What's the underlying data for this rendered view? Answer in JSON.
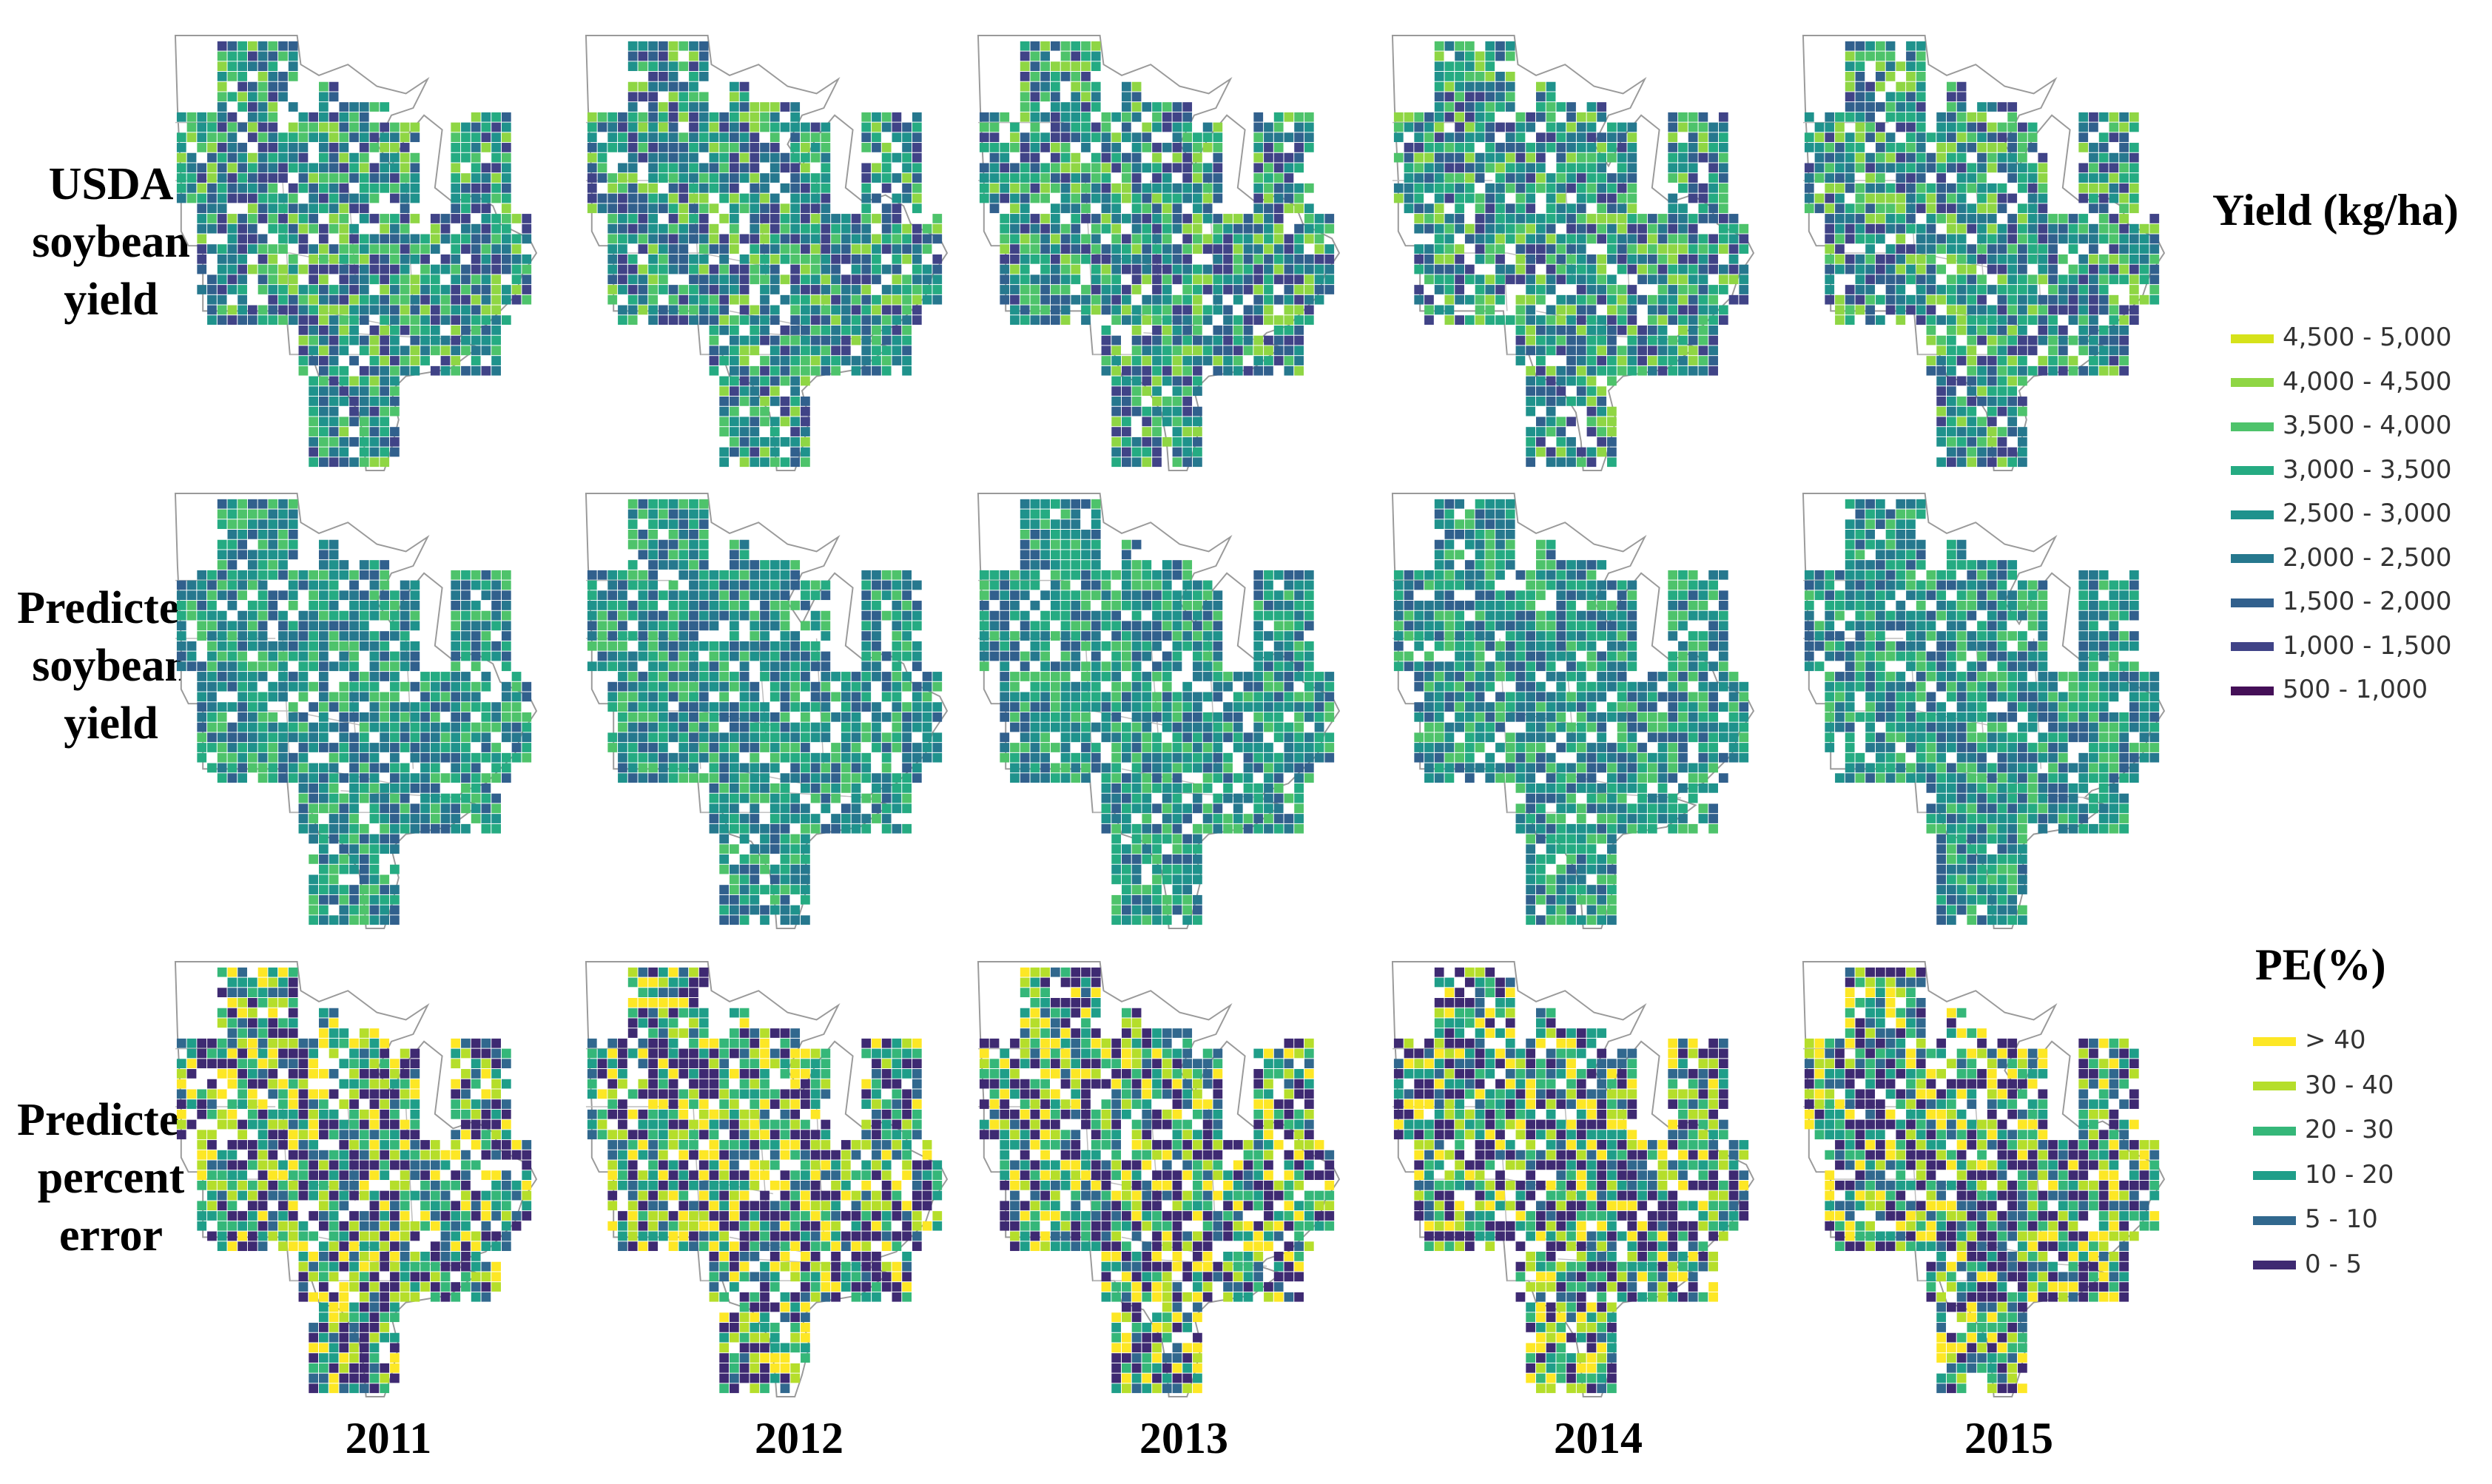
{
  "row_labels": [
    [
      "USDA",
      "soybean",
      "yield"
    ],
    [
      "Predicted",
      "soybean",
      "yield"
    ],
    [
      "Predicted",
      "percent",
      "error"
    ]
  ],
  "years": [
    "2011",
    "2012",
    "2013",
    "2014",
    "2015"
  ],
  "yield_legend": {
    "title": "Yield (kg/ha)",
    "items": [
      {
        "label": "4,500 - 5,000",
        "color": "#d6e21a"
      },
      {
        "label": "4,000 - 4,500",
        "color": "#8fd644"
      },
      {
        "label": "3,500 - 4,000",
        "color": "#4ec36b"
      },
      {
        "label": "3,000 - 3,500",
        "color": "#25ab82"
      },
      {
        "label": "2,500 - 3,000",
        "color": "#1f928c"
      },
      {
        "label": "2,000 - 2,500",
        "color": "#26788e"
      },
      {
        "label": "1,500 - 2,000",
        "color": "#31608d"
      },
      {
        "label": "1,000 - 1,500",
        "color": "#404387"
      },
      {
        "label": "500 - 1,000",
        "color": "#440f57"
      }
    ]
  },
  "pe_legend": {
    "title": "PE(%)",
    "items": [
      {
        "label": "> 40",
        "color": "#fde725"
      },
      {
        "label": "30 - 40",
        "color": "#b5de2b"
      },
      {
        "label": "20 - 30",
        "color": "#35b779"
      },
      {
        "label": "10 - 20",
        "color": "#1f9e89"
      },
      {
        "label": "5 - 10",
        "color": "#31688e"
      },
      {
        "label": "0 - 5",
        "color": "#3e2a72"
      }
    ]
  },
  "map_palettes": {
    "usda": [
      "#26788e",
      "#1f928c",
      "#25ab82",
      "#4ec36b",
      "#31608d",
      "#8fd644",
      "#404387"
    ],
    "predicted": [
      "#26788e",
      "#1f928c",
      "#25ab82",
      "#31608d",
      "#4ec36b"
    ],
    "pe": [
      "#3e2a72",
      "#3e2a72",
      "#31688e",
      "#1f9e89",
      "#35b779",
      "#b5de2b",
      "#fde725"
    ]
  }
}
